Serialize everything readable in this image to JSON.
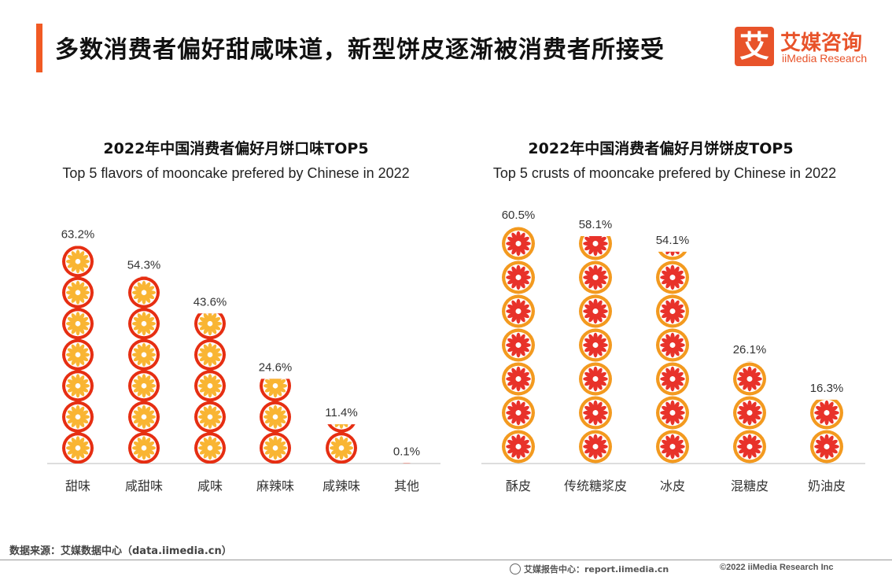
{
  "page": {
    "title": "多数消费者偏好甜咸味道，新型饼皮逐渐被消费者所接受"
  },
  "logo": {
    "mark": "艾",
    "cn": "艾媒咨询",
    "en": "iiMedia Research"
  },
  "source": "数据来源：艾媒数据中心（data.iimedia.cn）",
  "footer": {
    "left": "艾媒报告中心：report.iimedia.cn",
    "right": "©2022  iiMedia Research  Inc"
  },
  "colors": {
    "accent": "#f15a24",
    "flavor_icon_fill": "#e62e12",
    "flavor_icon_petal": "#f9b533",
    "crust_icon_fill": "#f39a1f",
    "crust_icon_petal": "#e8322a"
  },
  "chart_data": [
    {
      "type": "bar",
      "style": "pictograph",
      "icon": "mooncake-flower-icon",
      "title": "2022年中国消费者偏好月饼口味TOP5",
      "subtitle": "Top 5 flavors of mooncake  prefered by Chinese  in 2022",
      "categories": [
        "甜味",
        "咸甜味",
        "咸味",
        "麻辣味",
        "咸辣味",
        "其他"
      ],
      "values": [
        63.2,
        54.3,
        43.6,
        24.6,
        11.4,
        0.1
      ],
      "labels": [
        "63.2%",
        "54.3%",
        "43.6%",
        "24.6%",
        "11.4%",
        "0.1%"
      ],
      "unit": "%",
      "ylim": [
        0,
        63.2
      ]
    },
    {
      "type": "bar",
      "style": "pictograph",
      "icon": "mooncake-flower-icon",
      "title": "2022年中国消费者偏好月饼饼皮TOP5",
      "subtitle": "Top 5 crusts of mooncake  prefered by Chinese  in 2022",
      "categories": [
        "酥皮",
        "传统糖浆皮",
        "冰皮",
        "混糖皮",
        "奶油皮"
      ],
      "values": [
        60.5,
        58.1,
        54.1,
        26.1,
        16.3
      ],
      "labels": [
        "60.5%",
        "58.1%",
        "54.1%",
        "26.1%",
        "16.3%"
      ],
      "unit": "%",
      "ylim": [
        0,
        60.5
      ]
    }
  ]
}
